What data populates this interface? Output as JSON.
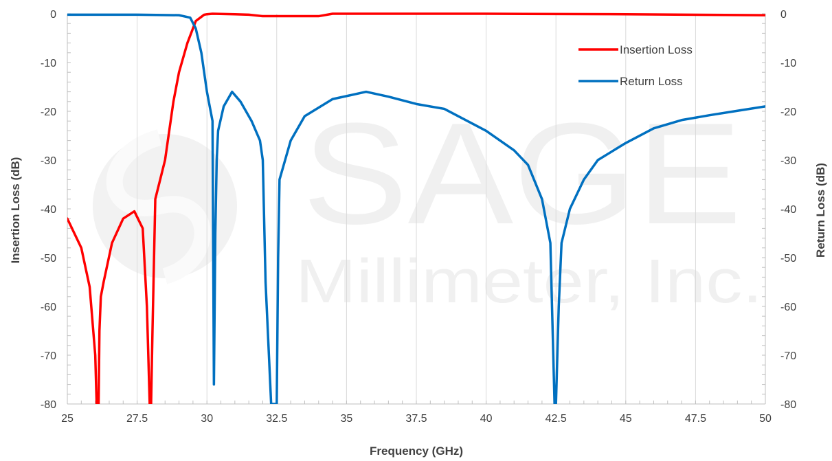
{
  "watermark": {
    "brand": "SAGE",
    "company": "Millimeter, Inc."
  },
  "chart_data": {
    "type": "line",
    "xlabel": "Frequency (GHz)",
    "ylabel_left": "Insertion Loss (dB)",
    "ylabel_right": "Return Loss (dB)",
    "xlim": [
      25,
      50
    ],
    "ylim": [
      -80,
      0
    ],
    "x_ticks": [
      "25",
      "27.5",
      "30",
      "32.5",
      "35",
      "37.5",
      "40",
      "42.5",
      "45",
      "47.5",
      "50"
    ],
    "y_ticks": [
      "0",
      "-10",
      "-20",
      "-30",
      "-40",
      "-50",
      "-60",
      "-70",
      "-80"
    ],
    "grid": "vertical",
    "legend_position": "top-right",
    "series": [
      {
        "name": "Insertion Loss",
        "color": "#ff0000",
        "x": [
          25.0,
          25.5,
          25.8,
          26.0,
          26.05,
          26.12,
          26.15,
          26.2,
          26.3,
          26.6,
          27.0,
          27.4,
          27.7,
          27.85,
          27.95,
          28.0,
          28.05,
          28.15,
          28.5,
          28.8,
          29.0,
          29.3,
          29.6,
          29.9,
          30.0,
          30.2,
          31.0,
          31.5,
          32.0,
          33.0,
          34.0,
          34.5,
          36.0,
          40.0,
          45.0,
          50.0
        ],
        "y": [
          -42,
          -48,
          -56,
          -70,
          -80,
          -80,
          -65,
          -58,
          -55,
          -47,
          -42,
          -40.5,
          -44,
          -60,
          -80,
          -80,
          -65,
          -38,
          -30,
          -18,
          -12,
          -6,
          -1.5,
          -0.2,
          -0.1,
          0,
          -0.1,
          -0.2,
          -0.5,
          -0.5,
          -0.5,
          0,
          0,
          0,
          -0.1,
          -0.3
        ]
      },
      {
        "name": "Return Loss",
        "color": "#0070c0",
        "x": [
          25.0,
          27.5,
          29.0,
          29.4,
          29.6,
          29.8,
          29.9,
          30.0,
          30.1,
          30.2,
          30.25,
          30.3,
          30.35,
          30.4,
          30.6,
          30.9,
          31.2,
          31.6,
          31.9,
          32.0,
          32.1,
          32.3,
          32.4,
          32.45,
          32.5,
          32.55,
          32.6,
          33.0,
          33.5,
          34.5,
          35.7,
          36.5,
          37.5,
          38.5,
          40.0,
          41.0,
          41.5,
          42.0,
          42.3,
          42.45,
          42.5,
          42.6,
          42.7,
          43.0,
          43.5,
          44.0,
          45.0,
          46.0,
          47.0,
          48.0,
          49.0,
          50.0
        ],
        "y": [
          -0.2,
          -0.2,
          -0.3,
          -0.8,
          -3,
          -8,
          -12,
          -16,
          -19,
          -22,
          -76,
          -45,
          -30,
          -24,
          -19,
          -16,
          -18,
          -22,
          -26,
          -30,
          -55,
          -80,
          -80,
          -80,
          -80,
          -50,
          -34,
          -26,
          -21,
          -17.5,
          -16,
          -17,
          -18.5,
          -19.5,
          -24,
          -28,
          -31,
          -38,
          -47,
          -80,
          -80,
          -60,
          -47,
          -40,
          -34,
          -30,
          -26.5,
          -23.5,
          -21.8,
          -20.8,
          -19.9,
          -19
        ]
      }
    ]
  }
}
